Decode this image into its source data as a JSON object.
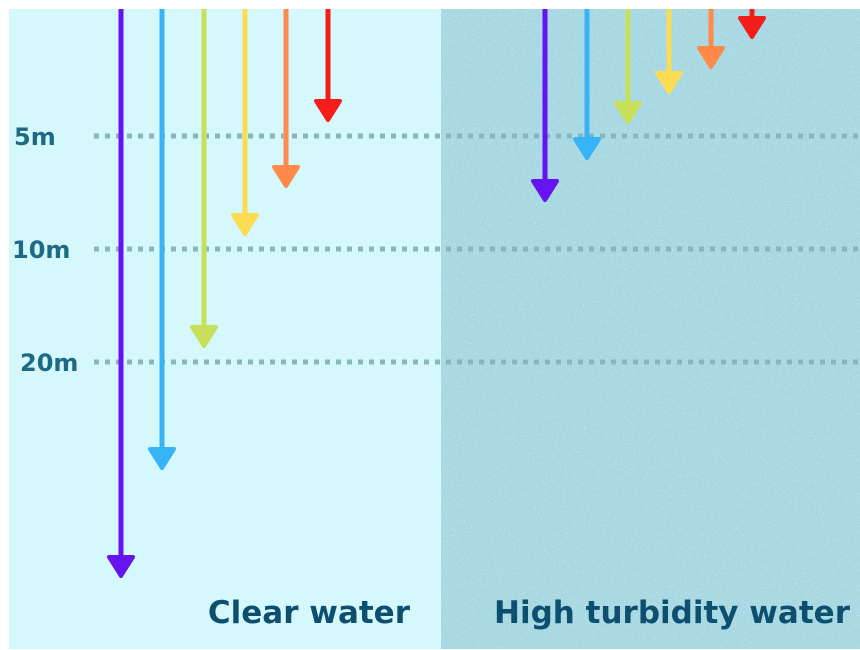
{
  "panels": {
    "clear": {
      "label": "Clear water",
      "background": "#d5f8fd"
    },
    "turbid": {
      "label": "High turbidity water",
      "background": "#a8d9e3"
    }
  },
  "depth_marks": [
    {
      "label": "5m"
    },
    {
      "label": "10m"
    },
    {
      "label": "20m"
    }
  ],
  "wavelength_colors": [
    "#6514f0",
    "#37b4f5",
    "#c8df5a",
    "#fcdc52",
    "#ff8a4a",
    "#f51d1a"
  ],
  "gridline_color": "#87b7bd"
}
